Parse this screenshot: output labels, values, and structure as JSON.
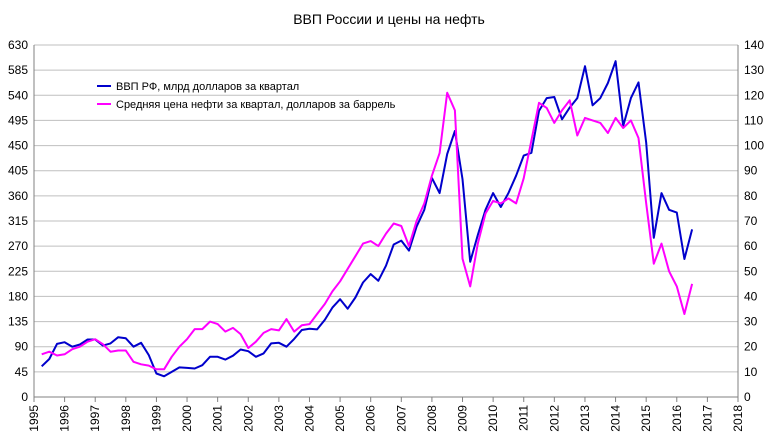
{
  "chart_data": {
    "type": "line",
    "title": "ВВП России и цены на нефть",
    "grid": "horizontal",
    "legend_position": "top-left",
    "x_ticks": [
      "1995",
      "1996",
      "1997",
      "1998",
      "1999",
      "2000",
      "2001",
      "2002",
      "2003",
      "2004",
      "2005",
      "2006",
      "2007",
      "2008",
      "2009",
      "2010",
      "2011",
      "2012",
      "2013",
      "2014",
      "2015",
      "2016",
      "2017",
      "2018"
    ],
    "xlim": [
      1995,
      2018
    ],
    "left_axis": {
      "ylim": [
        0,
        630
      ],
      "ticks": [
        "0",
        "45",
        "90",
        "135",
        "180",
        "225",
        "270",
        "315",
        "360",
        "405",
        "450",
        "495",
        "540",
        "585",
        "630"
      ]
    },
    "right_axis": {
      "ylim": [
        0,
        140
      ],
      "ticks": [
        "0",
        "10",
        "20",
        "30",
        "40",
        "50",
        "60",
        "70",
        "80",
        "90",
        "100",
        "110",
        "120",
        "130",
        "140"
      ]
    },
    "series": [
      {
        "name": "ВВП РФ, млрд долларов за квартал",
        "axis": "left",
        "color": "#0000cc",
        "x": [
          1995.25,
          1995.5,
          1995.75,
          1996.0,
          1996.25,
          1996.5,
          1996.75,
          1997.0,
          1997.25,
          1997.5,
          1997.75,
          1998.0,
          1998.25,
          1998.5,
          1998.75,
          1999.0,
          1999.25,
          1999.5,
          1999.75,
          2000.0,
          2000.25,
          2000.5,
          2000.75,
          2001.0,
          2001.25,
          2001.5,
          2001.75,
          2002.0,
          2002.25,
          2002.5,
          2002.75,
          2003.0,
          2003.25,
          2003.5,
          2003.75,
          2004.0,
          2004.25,
          2004.5,
          2004.75,
          2005.0,
          2005.25,
          2005.5,
          2005.75,
          2006.0,
          2006.25,
          2006.5,
          2006.75,
          2007.0,
          2007.25,
          2007.5,
          2007.75,
          2008.0,
          2008.25,
          2008.5,
          2008.75,
          2009.0,
          2009.25,
          2009.5,
          2009.75,
          2010.0,
          2010.25,
          2010.5,
          2010.75,
          2011.0,
          2011.25,
          2011.5,
          2011.75,
          2012.0,
          2012.25,
          2012.5,
          2012.75,
          2013.0,
          2013.25,
          2013.5,
          2013.75,
          2014.0,
          2014.25,
          2014.5,
          2014.75,
          2015.0,
          2015.25,
          2015.5,
          2015.75,
          2016.0,
          2016.25,
          2016.5
        ],
        "values": [
          55,
          68,
          95,
          98,
          90,
          94,
          103,
          103,
          92,
          96,
          107,
          105,
          90,
          97,
          75,
          42,
          37,
          45,
          53,
          52,
          51,
          57,
          72,
          72,
          67,
          74,
          85,
          82,
          72,
          78,
          96,
          97,
          90,
          104,
          120,
          122,
          121,
          138,
          160,
          175,
          158,
          178,
          205,
          220,
          208,
          235,
          273,
          280,
          262,
          305,
          335,
          392,
          365,
          435,
          476,
          390,
          242,
          290,
          335,
          365,
          340,
          365,
          396,
          432,
          437,
          512,
          535,
          537,
          497,
          518,
          535,
          592,
          522,
          535,
          562,
          601,
          485,
          535,
          563,
          455,
          285,
          365,
          335,
          330,
          247,
          300
        ]
      },
      {
        "name": "Средняя  цена  нефти  за квартал, долларов за баррель",
        "axis": "right",
        "color": "#ff00ff",
        "x": [
          1995.25,
          1995.5,
          1995.75,
          1996.0,
          1996.25,
          1996.5,
          1996.75,
          1997.0,
          1997.25,
          1997.5,
          1997.75,
          1998.0,
          1998.25,
          1998.5,
          1998.75,
          1999.0,
          1999.25,
          1999.5,
          1999.75,
          2000.0,
          2000.25,
          2000.5,
          2000.75,
          2001.0,
          2001.25,
          2001.5,
          2001.75,
          2002.0,
          2002.25,
          2002.5,
          2002.75,
          2003.0,
          2003.25,
          2003.5,
          2003.75,
          2004.0,
          2004.25,
          2004.5,
          2004.75,
          2005.0,
          2005.25,
          2005.5,
          2005.75,
          2006.0,
          2006.25,
          2006.5,
          2006.75,
          2007.0,
          2007.25,
          2007.5,
          2007.75,
          2008.0,
          2008.25,
          2008.5,
          2008.75,
          2009.0,
          2009.25,
          2009.5,
          2009.75,
          2010.0,
          2010.25,
          2010.5,
          2010.75,
          2011.0,
          2011.25,
          2011.5,
          2011.75,
          2012.0,
          2012.25,
          2012.5,
          2012.75,
          2013.0,
          2013.25,
          2013.5,
          2013.75,
          2014.0,
          2014.25,
          2014.5,
          2014.75,
          2015.0,
          2015.25,
          2015.5,
          2015.75,
          2016.0,
          2016.25,
          2016.5
        ],
        "values": [
          17,
          18,
          16.5,
          17,
          19,
          20,
          22,
          23,
          21,
          18,
          18.5,
          18.5,
          14,
          13,
          12.5,
          11,
          11,
          16,
          20,
          23,
          27,
          27,
          30,
          29,
          26,
          27.5,
          25,
          19.5,
          22,
          25.5,
          27,
          26.5,
          31,
          26,
          28.5,
          29,
          33,
          37,
          42,
          46,
          51,
          56,
          61,
          62,
          60,
          65,
          69,
          68,
          60,
          70,
          77,
          88,
          97,
          121,
          114,
          55,
          44,
          61,
          73,
          78,
          77,
          79,
          77,
          87,
          102,
          117,
          115,
          109,
          114,
          118,
          104,
          111,
          110,
          109,
          105,
          111,
          107,
          110,
          103,
          77,
          53,
          61,
          50,
          44,
          33,
          45
        ]
      }
    ]
  }
}
